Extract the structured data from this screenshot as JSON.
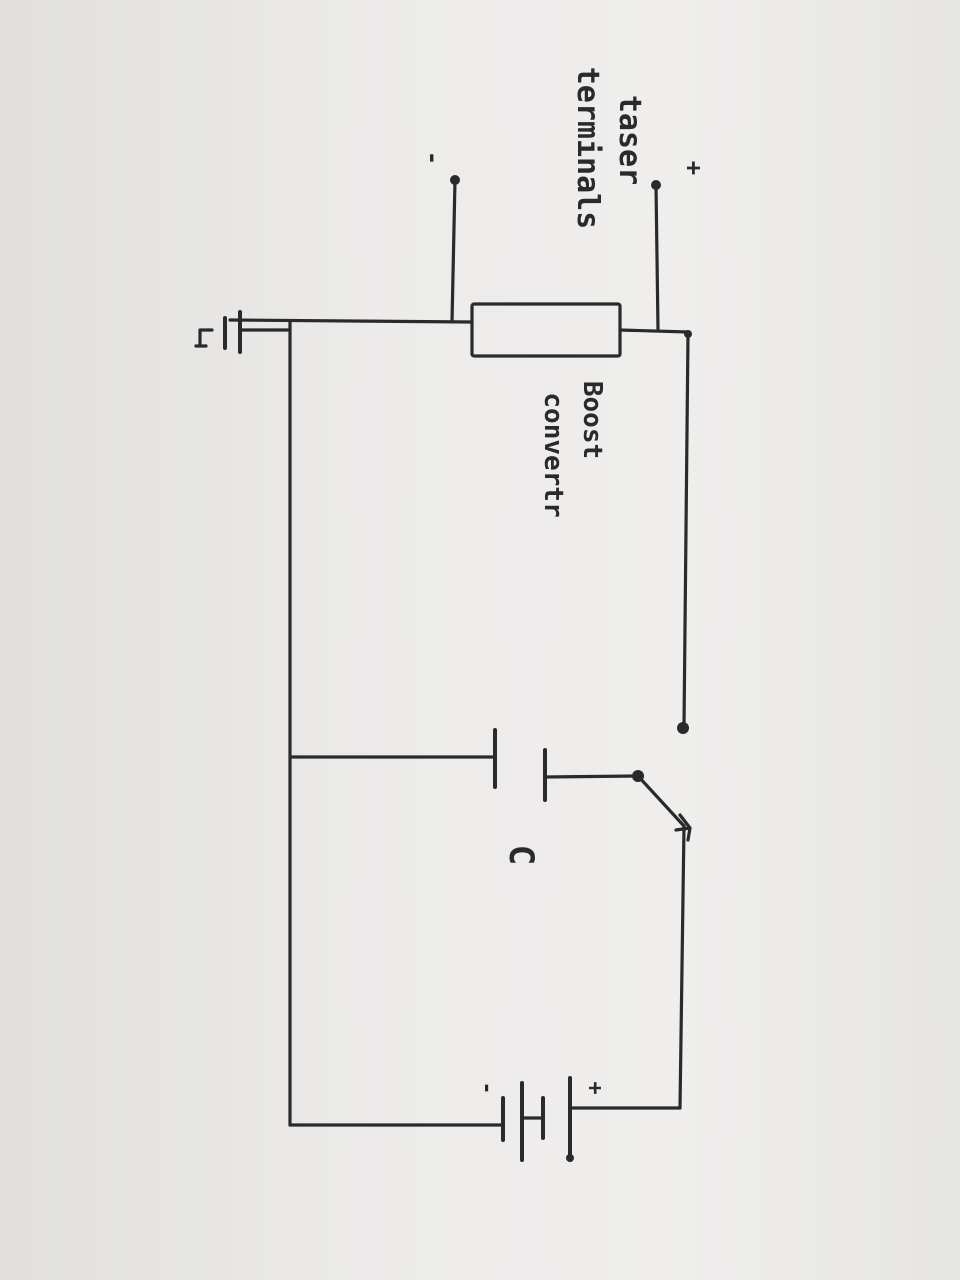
{
  "labels": {
    "taser_line1": "taser",
    "taser_line2": "terminals",
    "plus_terminal": "+",
    "minus_terminal": "-",
    "boost_line1": "Boost",
    "boost_line2": "convertr",
    "capacitor": "C",
    "battery_plus": "+",
    "battery_minus": "-"
  },
  "colors": {
    "ink": "#2a2a2a",
    "paper": "#ecebea"
  }
}
